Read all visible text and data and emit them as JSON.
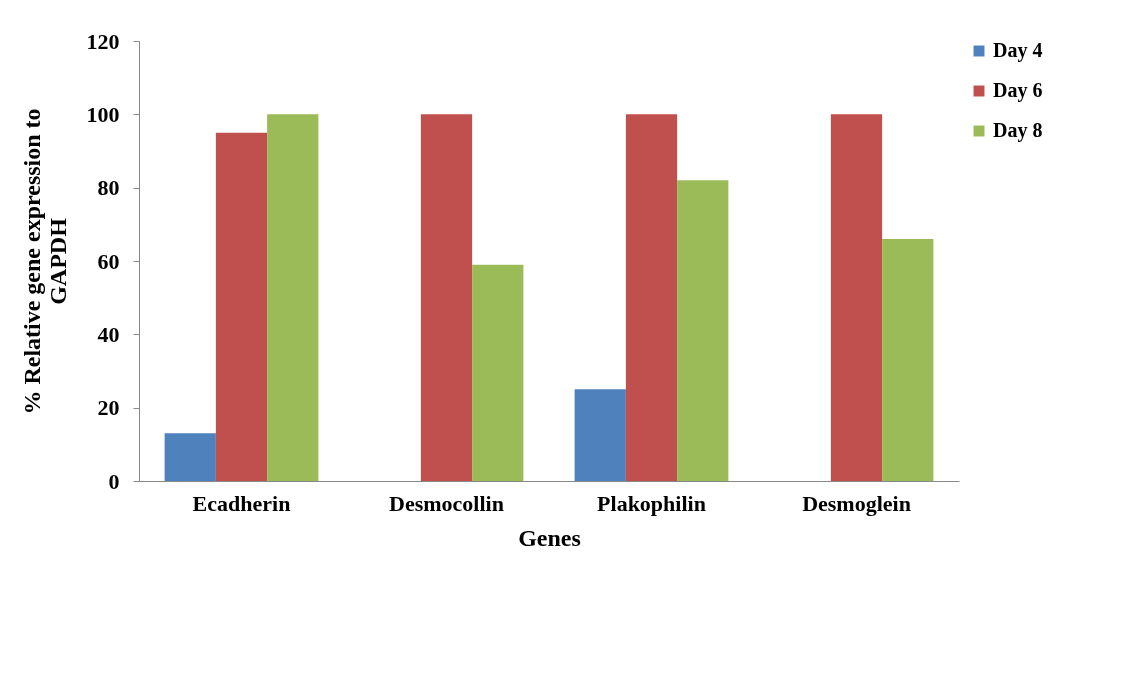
{
  "chart_data": {
    "type": "bar",
    "xlabel": "Genes",
    "ylabel": "% Relative gene expression  to GAPDH",
    "categories": [
      "Ecadherin",
      "Desmocollin",
      "Plakophilin",
      "Desmoglein"
    ],
    "series": [
      {
        "name": "Day 4",
        "color": "#4f81bd",
        "values": [
          13,
          0,
          25,
          0
        ]
      },
      {
        "name": "Day 6",
        "color": "#c0504d",
        "values": [
          95,
          100,
          100,
          100
        ]
      },
      {
        "name": "Day 8",
        "color": "#9bbb59",
        "values": [
          100,
          59,
          82,
          66
        ]
      }
    ],
    "ylim": [
      0,
      120
    ],
    "yticks": [
      0,
      20,
      40,
      60,
      80,
      100,
      120
    ],
    "grid": false,
    "legend": "top right"
  }
}
